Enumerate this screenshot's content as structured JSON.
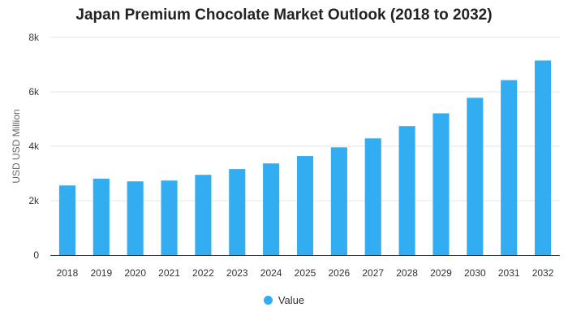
{
  "chart_data": {
    "type": "bar",
    "title": "Japan Premium Chocolate Market Outlook (2018 to 2032)",
    "xlabel": "",
    "ylabel": "USD USD Million",
    "categories": [
      "2018",
      "2019",
      "2020",
      "2021",
      "2022",
      "2023",
      "2024",
      "2025",
      "2026",
      "2027",
      "2028",
      "2029",
      "2030",
      "2031",
      "2032"
    ],
    "series": [
      {
        "name": "Value",
        "color": "#33adf2",
        "values": [
          2560,
          2810,
          2710,
          2740,
          2950,
          3160,
          3370,
          3640,
          3960,
          4290,
          4740,
          5210,
          5780,
          6430,
          7150
        ]
      }
    ],
    "ylim": [
      0,
      8000
    ],
    "yticks": [
      0,
      2000,
      4000,
      6000,
      8000
    ],
    "ytick_labels": [
      "0",
      "2k",
      "4k",
      "6k",
      "8k"
    ],
    "grid": true,
    "legend_position": "bottom"
  }
}
